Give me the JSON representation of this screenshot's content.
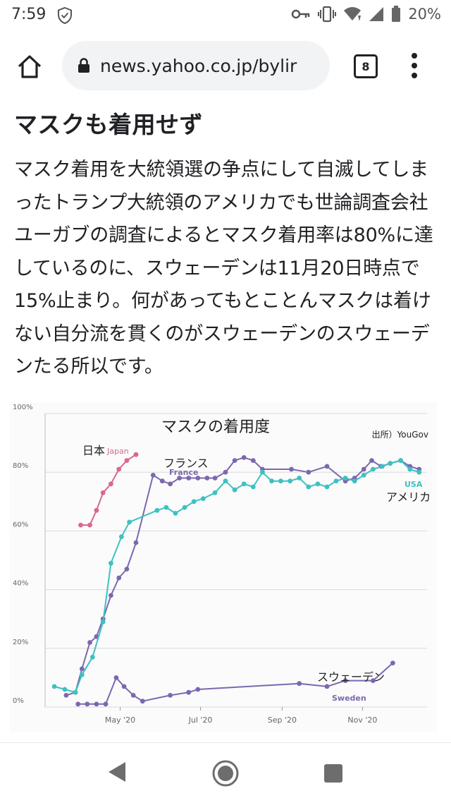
{
  "status_bar": {
    "time": "7:59",
    "battery": "20%"
  },
  "browser": {
    "url": "news.yahoo.co.jp/bylir",
    "tab_count": "8"
  },
  "article": {
    "headline": "マスクも着用せず",
    "body": "マスク着用を大統領選の争点にして自滅してしまったトランプ大統領のアメリカでも世論調査会社ユーガブの調査によるとマスク着用率は80%に達しているのに、スウェーデンは11月20日時点で15%止まり。何があってもとことんマスクは着けない自分流を貫くのがスウェーデンのスウェーデンたる所以です。"
  },
  "chart_data": {
    "type": "line",
    "title": "マスクの着用度",
    "source": "出所）YouGov",
    "ylim": [
      0,
      100
    ],
    "y_ticks": [
      "0%",
      "20%",
      "40%",
      "60%",
      "80%",
      "100%"
    ],
    "x_ticks": [
      "May '20",
      "Jul '20",
      "Sep '20",
      "Nov '20"
    ],
    "series": [
      {
        "name": "Japan",
        "label_ja": "日本",
        "color": "#d9678f",
        "points": [
          [
            "2020-04-01",
            62
          ],
          [
            "2020-04-08",
            62
          ],
          [
            "2020-04-13",
            67
          ],
          [
            "2020-04-18",
            73
          ],
          [
            "2020-04-24",
            76
          ],
          [
            "2020-04-30",
            81
          ],
          [
            "2020-05-06",
            84
          ],
          [
            "2020-05-13",
            86
          ]
        ]
      },
      {
        "name": "France",
        "label_ja": "フランス",
        "color": "#7b68b0",
        "points": [
          [
            "2020-03-21",
            4
          ],
          [
            "2020-03-28",
            5
          ],
          [
            "2020-04-02",
            13
          ],
          [
            "2020-04-08",
            22
          ],
          [
            "2020-04-13",
            24
          ],
          [
            "2020-04-18",
            30
          ],
          [
            "2020-04-24",
            38
          ],
          [
            "2020-04-30",
            44
          ],
          [
            "2020-05-06",
            47
          ],
          [
            "2020-05-13",
            56
          ],
          [
            "2020-05-26",
            79
          ],
          [
            "2020-06-02",
            77
          ],
          [
            "2020-06-08",
            76
          ],
          [
            "2020-06-15",
            78
          ],
          [
            "2020-06-22",
            78
          ],
          [
            "2020-06-29",
            78
          ],
          [
            "2020-07-06",
            78
          ],
          [
            "2020-07-12",
            78
          ],
          [
            "2020-07-20",
            80
          ],
          [
            "2020-07-27",
            84
          ],
          [
            "2020-08-03",
            85
          ],
          [
            "2020-08-10",
            84
          ],
          [
            "2020-08-17",
            81
          ],
          [
            "2020-09-08",
            81
          ],
          [
            "2020-09-21",
            80
          ],
          [
            "2020-10-05",
            82
          ],
          [
            "2020-10-19",
            77
          ],
          [
            "2020-10-26",
            78
          ],
          [
            "2020-11-02",
            81
          ],
          [
            "2020-11-08",
            84
          ],
          [
            "2020-11-15",
            82
          ],
          [
            "2020-11-22",
            83
          ],
          [
            "2020-11-30",
            84
          ],
          [
            "2020-12-07",
            82
          ],
          [
            "2020-12-14",
            81
          ]
        ]
      },
      {
        "name": "USA",
        "label_ja": "アメリカ",
        "color": "#3ec1c1",
        "points": [
          [
            "2020-03-12",
            7
          ],
          [
            "2020-03-20",
            6
          ],
          [
            "2020-03-28",
            5
          ],
          [
            "2020-04-02",
            11
          ],
          [
            "2020-04-10",
            17
          ],
          [
            "2020-04-18",
            29
          ],
          [
            "2020-04-24",
            49
          ],
          [
            "2020-05-02",
            58
          ],
          [
            "2020-05-08",
            63
          ],
          [
            "2020-05-29",
            67
          ],
          [
            "2020-06-05",
            68
          ],
          [
            "2020-06-12",
            66
          ],
          [
            "2020-06-19",
            68
          ],
          [
            "2020-06-26",
            70
          ],
          [
            "2020-07-03",
            71
          ],
          [
            "2020-07-12",
            73
          ],
          [
            "2020-07-20",
            77
          ],
          [
            "2020-07-27",
            74
          ],
          [
            "2020-08-03",
            76
          ],
          [
            "2020-08-10",
            75
          ],
          [
            "2020-08-17",
            80
          ],
          [
            "2020-08-24",
            77
          ],
          [
            "2020-08-31",
            77
          ],
          [
            "2020-09-07",
            77
          ],
          [
            "2020-09-14",
            78
          ],
          [
            "2020-09-21",
            75
          ],
          [
            "2020-09-28",
            76
          ],
          [
            "2020-10-05",
            75
          ],
          [
            "2020-10-12",
            77
          ],
          [
            "2020-10-19",
            78
          ],
          [
            "2020-10-26",
            77
          ],
          [
            "2020-11-02",
            79
          ],
          [
            "2020-11-09",
            81
          ],
          [
            "2020-11-16",
            82
          ],
          [
            "2020-11-22",
            83
          ],
          [
            "2020-11-30",
            84
          ],
          [
            "2020-12-07",
            81
          ],
          [
            "2020-12-14",
            80
          ]
        ]
      },
      {
        "name": "Sweden",
        "label_ja": "スウェーデン",
        "color": "#7b68b0",
        "points": [
          [
            "2020-03-30",
            1
          ],
          [
            "2020-04-06",
            1
          ],
          [
            "2020-04-13",
            1
          ],
          [
            "2020-04-20",
            1
          ],
          [
            "2020-04-28",
            10
          ],
          [
            "2020-05-04",
            7
          ],
          [
            "2020-05-11",
            4
          ],
          [
            "2020-05-18",
            2
          ],
          [
            "2020-06-08",
            4
          ],
          [
            "2020-06-22",
            5
          ],
          [
            "2020-06-29",
            6
          ],
          [
            "2020-09-14",
            8
          ],
          [
            "2020-10-05",
            7
          ],
          [
            "2020-10-19",
            9
          ],
          [
            "2020-11-09",
            9
          ],
          [
            "2020-11-24",
            15
          ]
        ]
      }
    ]
  }
}
